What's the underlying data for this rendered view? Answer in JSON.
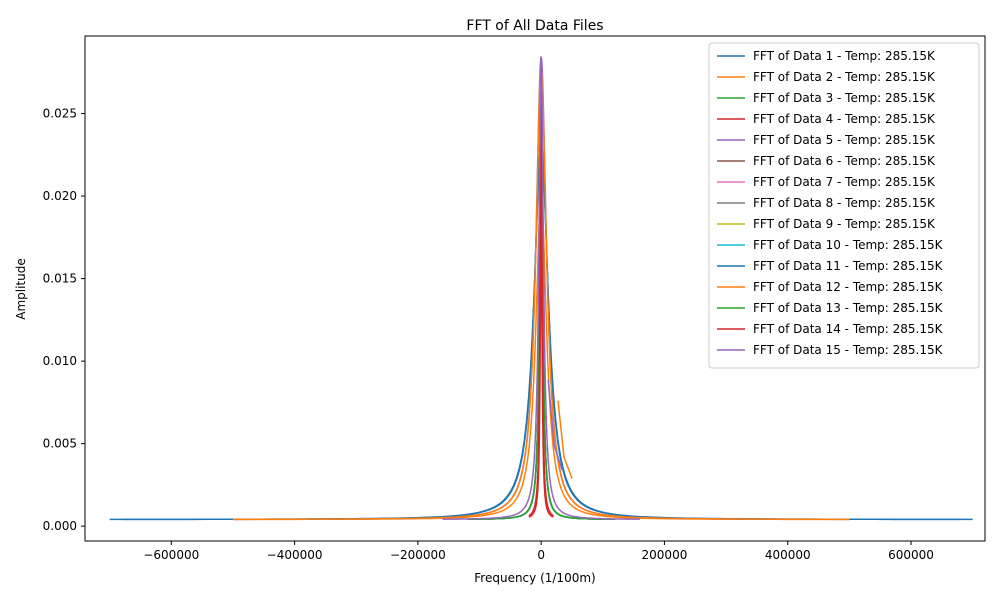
{
  "chart_data": {
    "type": "line",
    "title": "FFT of All Data Files",
    "xlabel": "Frequency (1/100m)",
    "ylabel": "Amplitude",
    "xlim": [
      -740000,
      720000
    ],
    "ylim": [
      -0.0009,
      0.0297
    ],
    "xticks": [
      -600000,
      -400000,
      -200000,
      0,
      200000,
      400000,
      600000
    ],
    "xtick_labels": [
      "−600000",
      "−400000",
      "−200000",
      "0",
      "200000",
      "400000",
      "600000"
    ],
    "yticks": [
      0.0,
      0.005,
      0.01,
      0.015,
      0.02,
      0.025
    ],
    "ytick_labels": [
      "0.000",
      "0.005",
      "0.010",
      "0.015",
      "0.020",
      "0.025"
    ],
    "grid": false,
    "legend_position": "top-right",
    "series": [
      {
        "name": "FFT of Data 1 - Temp: 285.15K",
        "color": "#1f77b4",
        "half_width": 700000,
        "peak": 0.0232,
        "spike": 0.0
      },
      {
        "name": "FFT of Data 2 - Temp: 285.15K",
        "color": "#ff7f0e",
        "half_width": 500000,
        "peak": 0.02,
        "spike": 0.0
      },
      {
        "name": "FFT of Data 3 - Temp: 285.15K",
        "color": "#2ca02c",
        "half_width": 120000,
        "peak": 0.02,
        "spike": 0.0
      },
      {
        "name": "FFT of Data 4 - Temp: 285.15K",
        "color": "#d62728",
        "half_width": 20000,
        "peak": 0.018,
        "spike": 0.0
      },
      {
        "name": "FFT of Data 5 - Temp: 285.15K",
        "color": "#9467bd",
        "half_width": 500000,
        "peak": 0.0284,
        "spike": 0.0
      },
      {
        "name": "FFT of Data 6 - Temp: 285.15K",
        "color": "#8c564b",
        "half_width": 100000,
        "peak": 0.023,
        "spike": 0.0
      },
      {
        "name": "FFT of Data 7 - Temp: 285.15K",
        "color": "#e377c2",
        "half_width": 100000,
        "peak": 0.023,
        "spike": 0.0
      },
      {
        "name": "FFT of Data 8 - Temp: 285.15K",
        "color": "#7f7f7f",
        "half_width": 100000,
        "peak": 0.023,
        "spike": 0.0
      },
      {
        "name": "FFT of Data 9 - Temp: 285.15K",
        "color": "#bcbd22",
        "half_width": 100000,
        "peak": 0.023,
        "spike": 0.0
      },
      {
        "name": "FFT of Data 10 - Temp: 285.15K",
        "color": "#17becf",
        "half_width": 100000,
        "peak": 0.023,
        "spike": 0.0
      },
      {
        "name": "FFT of Data 11 - Temp: 285.15K",
        "color": "#1f77b4",
        "half_width": 680000,
        "peak": 0.0232,
        "spike": 0.0
      },
      {
        "name": "FFT of Data 12 - Temp: 285.15K",
        "color": "#ff7f0e",
        "half_width": 500000,
        "peak": 0.0278,
        "spike": 0.0076
      },
      {
        "name": "FFT of Data 13 - Temp: 285.15K",
        "color": "#2ca02c",
        "half_width": 120000,
        "peak": 0.02,
        "spike": 0.0
      },
      {
        "name": "FFT of Data 14 - Temp: 285.15K",
        "color": "#d62728",
        "half_width": 20000,
        "peak": 0.0275,
        "spike": 0.0
      },
      {
        "name": "FFT of Data 15 - Temp: 285.15K",
        "color": "#9467bd",
        "half_width": 160000,
        "peak": 0.0284,
        "spike": 0.0089
      }
    ]
  }
}
